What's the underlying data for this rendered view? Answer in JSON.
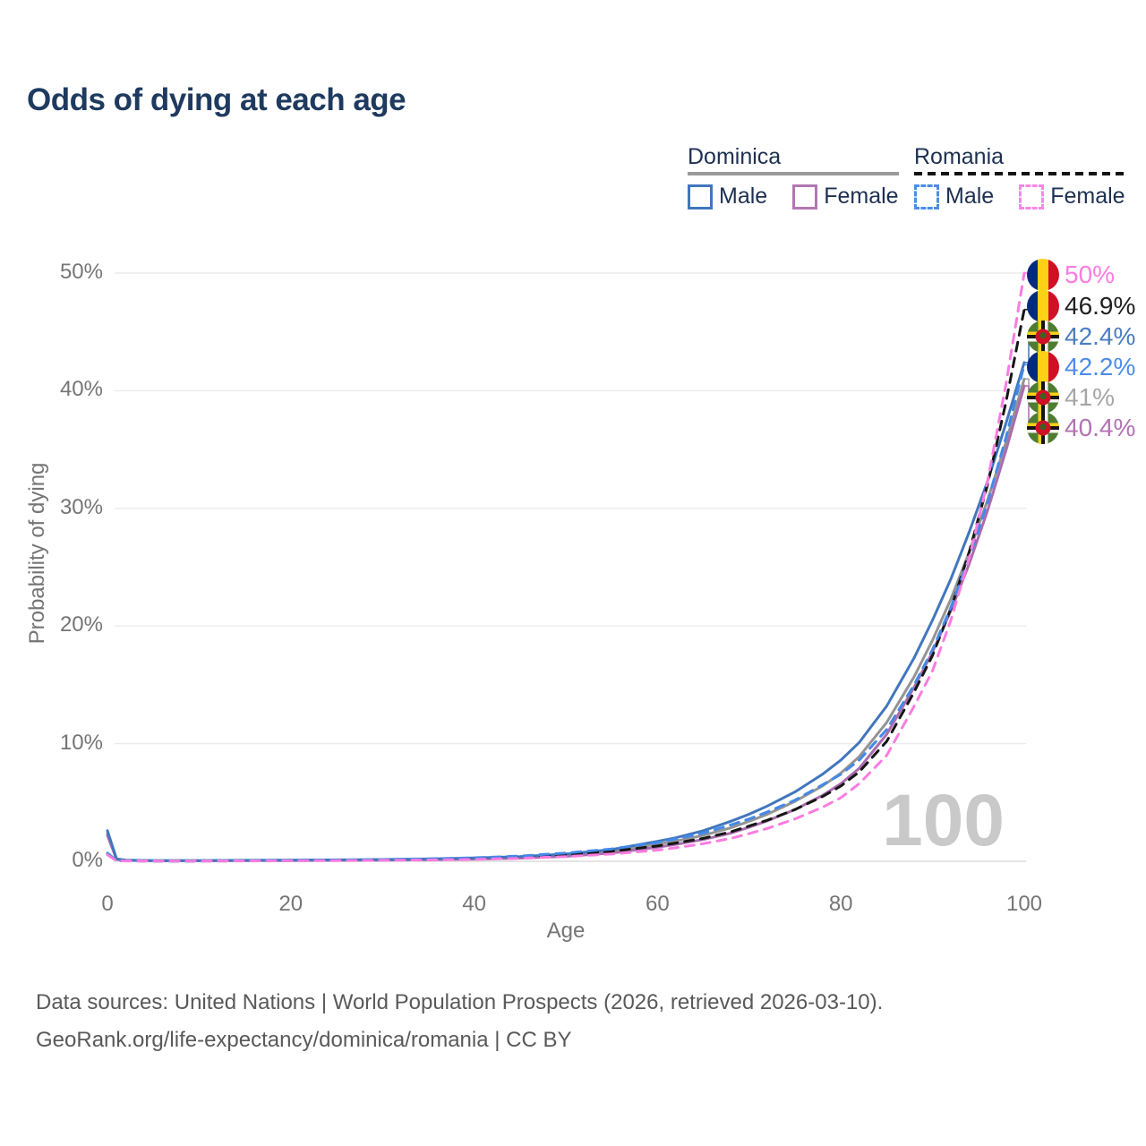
{
  "header": {
    "title": "Odds of dying at each age"
  },
  "legend": {
    "groups": [
      {
        "label": "Dominica",
        "line_style": "solid",
        "underline_color": "#9a9a9a",
        "items": [
          {
            "label": "Male",
            "color": "#4176bd",
            "dash": false
          },
          {
            "label": "Female",
            "color": "#b277b2",
            "dash": false
          }
        ]
      },
      {
        "label": "Romania",
        "line_style": "dashed",
        "underline_color": "#141414",
        "items": [
          {
            "label": "Male",
            "color": "#4d8ce8",
            "dash": true
          },
          {
            "label": "Female",
            "color": "#fb86e6",
            "dash": true
          }
        ]
      }
    ]
  },
  "axes": {
    "x_label": "Age",
    "y_label": "Probability of dying"
  },
  "footer": {
    "line1": "Data sources: United Nations | World Population Prospects (2026, retrieved 2026-03-10).",
    "line2": "GeoRank.org/life-expectancy/dominica/romania | CC BY"
  },
  "chart_data": {
    "type": "line",
    "title": "Odds of dying at each age",
    "xlabel": "Age",
    "ylabel": "Probability of dying",
    "xlim": [
      0,
      100
    ],
    "ylim_pct": [
      0,
      50
    ],
    "grid": "horizontal",
    "legend_position": "top-right",
    "watermark": "100",
    "x_ticks": [
      {
        "v": 0,
        "label": "0"
      },
      {
        "v": 20,
        "label": "20"
      },
      {
        "v": 40,
        "label": "40"
      },
      {
        "v": 60,
        "label": "60"
      },
      {
        "v": 80,
        "label": "80"
      },
      {
        "v": 100,
        "label": "100"
      }
    ],
    "y_ticks": [
      {
        "v": 0,
        "label": "0%"
      },
      {
        "v": 10,
        "label": "10%"
      },
      {
        "v": 20,
        "label": "20%"
      },
      {
        "v": 30,
        "label": "30%"
      },
      {
        "v": 40,
        "label": "40%"
      },
      {
        "v": 50,
        "label": "50%"
      }
    ],
    "label_slots_y": [
      307,
      342,
      376,
      410,
      444,
      478
    ],
    "ages": [
      0,
      1,
      2,
      5,
      10,
      15,
      20,
      25,
      30,
      35,
      40,
      45,
      50,
      55,
      60,
      62,
      65,
      68,
      70,
      72,
      75,
      78,
      80,
      82,
      85,
      88,
      90,
      92,
      94,
      96,
      98,
      100
    ],
    "series": [
      {
        "id": "dominica-total",
        "name": "Dominica Total",
        "country": "Dominica",
        "sex": "Both",
        "flag": "dominica",
        "line": "solid",
        "color": "#949494",
        "label": "41%",
        "label_color": "#a6a6a6",
        "slot": 4,
        "values": [
          2.4,
          0.18,
          0.09,
          0.05,
          0.05,
          0.07,
          0.09,
          0.11,
          0.13,
          0.17,
          0.23,
          0.34,
          0.52,
          0.85,
          1.45,
          1.72,
          2.2,
          2.85,
          3.4,
          4.0,
          5.1,
          6.4,
          7.5,
          8.9,
          11.8,
          15.7,
          18.8,
          22.3,
          26.3,
          30.7,
          35.6,
          41.0
        ]
      },
      {
        "id": "dominica-female",
        "name": "Dominica Female",
        "country": "Dominica",
        "sex": "Female",
        "flag": "dominica",
        "line": "solid",
        "color": "#aa6cae",
        "label": "40.4%",
        "label_color": "#b273b2",
        "slot": 5,
        "values": [
          2.2,
          0.16,
          0.08,
          0.04,
          0.04,
          0.055,
          0.07,
          0.085,
          0.1,
          0.135,
          0.18,
          0.27,
          0.42,
          0.7,
          1.2,
          1.44,
          1.85,
          2.4,
          2.9,
          3.45,
          4.4,
          5.6,
          6.6,
          7.9,
          10.8,
          14.8,
          17.8,
          21.3,
          25.3,
          29.8,
          34.9,
          40.4
        ]
      },
      {
        "id": "dominica-male",
        "name": "Dominica Male",
        "country": "Dominica",
        "sex": "Male",
        "flag": "dominica",
        "line": "solid",
        "color": "#4176bd",
        "label": "42.4%",
        "label_color": "#4a7dbf",
        "slot": 2,
        "values": [
          2.6,
          0.2,
          0.1,
          0.06,
          0.06,
          0.08,
          0.1,
          0.12,
          0.15,
          0.2,
          0.28,
          0.4,
          0.62,
          1.0,
          1.7,
          2.0,
          2.6,
          3.4,
          4.0,
          4.7,
          5.9,
          7.4,
          8.6,
          10.1,
          13.2,
          17.3,
          20.5,
          24.0,
          28.0,
          32.3,
          37.2,
          42.4
        ]
      },
      {
        "id": "romania-total",
        "name": "Romania Total",
        "country": "Romania",
        "sex": "Both",
        "flag": "romania",
        "line": "dashed",
        "color": "#161616",
        "label": "46.9%",
        "label_color": "#1f1f1f",
        "slot": 1,
        "values": [
          0.6,
          0.05,
          0.035,
          0.025,
          0.025,
          0.04,
          0.06,
          0.085,
          0.12,
          0.165,
          0.23,
          0.35,
          0.55,
          0.85,
          1.3,
          1.55,
          1.95,
          2.5,
          3.0,
          3.5,
          4.4,
          5.5,
          6.4,
          7.6,
          10.2,
          14.4,
          17.5,
          21.5,
          26.3,
          32.0,
          39.0,
          46.9
        ]
      },
      {
        "id": "romania-male",
        "name": "Romania Male",
        "country": "Romania",
        "sex": "Male",
        "flag": "romania",
        "line": "dashed",
        "color": "#4489e8",
        "label": "42.2%",
        "label_color": "#4e8ce8",
        "slot": 3,
        "values": [
          0.7,
          0.06,
          0.04,
          0.03,
          0.03,
          0.05,
          0.08,
          0.11,
          0.15,
          0.21,
          0.3,
          0.45,
          0.7,
          1.05,
          1.6,
          1.9,
          2.4,
          3.1,
          3.6,
          4.2,
          5.2,
          6.5,
          7.4,
          8.6,
          11.2,
          15.0,
          18.0,
          21.6,
          25.8,
          30.5,
          36.0,
          42.2
        ]
      },
      {
        "id": "romania-female",
        "name": "Romania Female",
        "country": "Romania",
        "sex": "Female",
        "flag": "romania",
        "line": "dashed",
        "color": "#fa7ce0",
        "label": "50%",
        "label_color": "#fb7ce2",
        "slot": 0,
        "values": [
          0.55,
          0.045,
          0.03,
          0.02,
          0.02,
          0.03,
          0.045,
          0.06,
          0.08,
          0.115,
          0.16,
          0.25,
          0.4,
          0.62,
          0.95,
          1.15,
          1.5,
          1.95,
          2.35,
          2.8,
          3.6,
          4.6,
          5.4,
          6.6,
          9.0,
          13.2,
          16.2,
          20.5,
          25.8,
          32.3,
          40.5,
          50.0
        ]
      }
    ]
  }
}
